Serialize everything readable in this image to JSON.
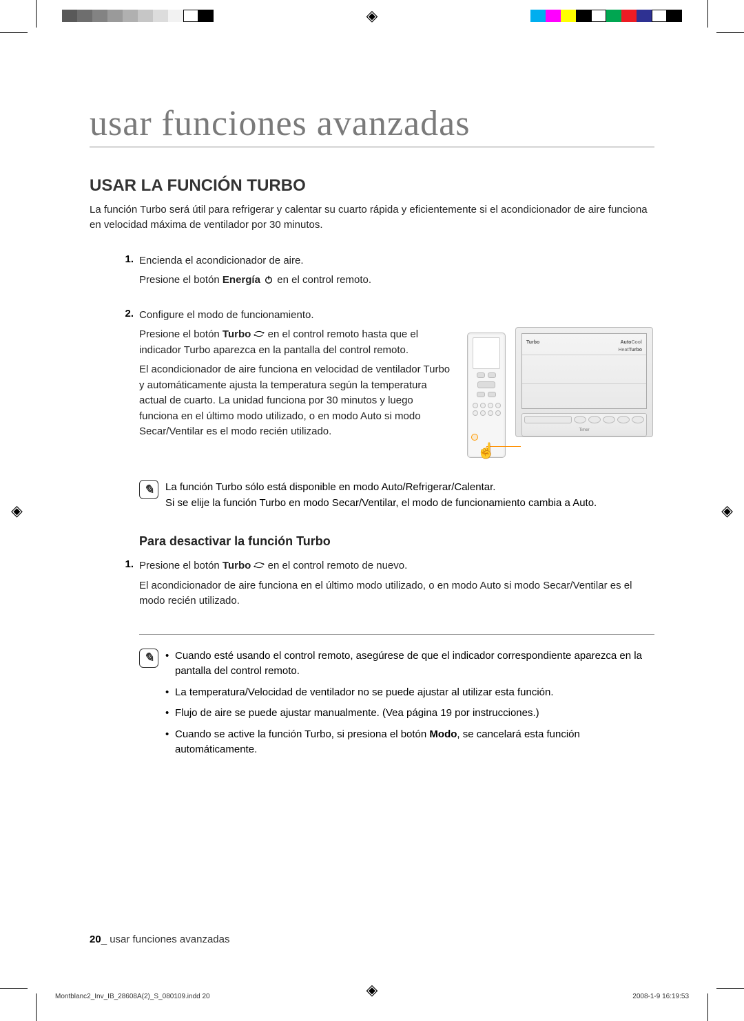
{
  "print_marks": {
    "left_bar_colors": [
      "#595959",
      "#6e6e6e",
      "#838383",
      "#9a9a9a",
      "#b0b0b0",
      "#c6c6c6",
      "#dcdcdc",
      "#f2f2f2",
      "#ffffff",
      "#000000"
    ],
    "right_bar_colors": [
      "#00aeef",
      "#ff00ff",
      "#ffff00",
      "#000000",
      "#ffffff",
      "#00a651",
      "#ed1c24",
      "#2e3192",
      "#ffffff",
      "#000000"
    ],
    "registration_glyph": "◈"
  },
  "chapter_title": "usar funciones avanzadas",
  "section_title": "USAR LA FUNCIÓN TURBO",
  "intro": "La función Turbo será útil para refrigerar y calentar su cuarto rápida y eficientemente si el acondicionador de aire funciona en velocidad máxima de ventilador por 30 minutos.",
  "step1": {
    "num": "1.",
    "line1": "Encienda el acondicionador de aire.",
    "line2_pre": "Presione el botón ",
    "line2_bold": "Energía",
    "line2_post": " en el control remoto."
  },
  "step2": {
    "num": "2.",
    "line1": "Configure el modo de funcionamiento.",
    "line2_pre": "Presione el botón ",
    "line2_bold": "Turbo",
    "line2_post": " en el control remoto hasta que el indicador Turbo aparezca en la pantalla del control remoto.",
    "para2": "El acondicionador de aire funciona en velocidad de ventilador Turbo y automáticamente ajusta la temperatura según la temperatura actual de cuarto. La unidad funciona por 30 minutos y luego funciona en el último modo utilizado, o en modo Auto si modo Secar/Ventilar es el modo recién utilizado."
  },
  "note1": {
    "l1": "La función Turbo sólo está disponible en modo Auto/Refrigerar/Calentar.",
    "l2": "Si se elije la función Turbo en modo Secar/Ventilar, el modo de funcionamiento cambia a Auto."
  },
  "subheading": "Para desactivar la función Turbo",
  "deact": {
    "num": "1.",
    "line1_pre": "Presione el botón ",
    "line1_bold": "Turbo",
    "line1_post": " en el control remoto de nuevo.",
    "para": "El acondicionador de aire funciona en el último modo utilizado, o en modo Auto si modo Secar/Ventilar es el modo recién utilizado."
  },
  "note2": {
    "b1": "Cuando esté usando el control remoto, asegúrese de que el indicador correspondiente aparezca en la pantalla del control remoto.",
    "b2": "La temperatura/Velocidad de ventilador no se puede ajustar al utilizar esta función.",
    "b3": "Flujo de aire se puede ajustar manualmente. (Vea página 19 por instrucciones.)",
    "b4_pre": "Cuando se active la función Turbo, si presiona el botón ",
    "b4_bold": "Modo",
    "b4_post": ", se cancelará esta función automáticamente."
  },
  "illus_labels": {
    "turbo": "Turbo",
    "auto": "Auto",
    "cool": "Cool",
    "heat": "Heat",
    "turbo2": "Turbo",
    "onoff": "On/Off",
    "timer": "Timer"
  },
  "footer": {
    "page_num": "20",
    "sep": "_ ",
    "label": "usar funciones avanzadas"
  },
  "slug": {
    "file": "Montblanc2_Inv_IB_28608A(2)_S_080109.indd   20",
    "date": "2008-1-9   16:19:53"
  },
  "colors": {
    "text": "#222222",
    "heading_gray": "#7a7a7a",
    "accent_orange": "#ff9000",
    "rule_gray": "#999999"
  }
}
